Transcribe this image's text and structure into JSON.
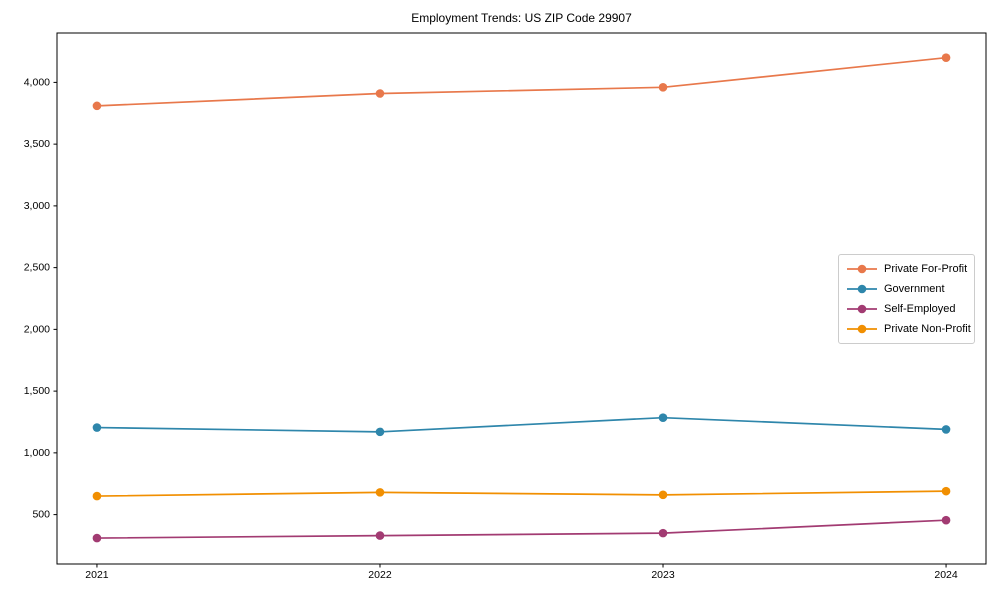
{
  "chart_data": {
    "type": "line",
    "title": "Employment Trends: US ZIP Code 29907",
    "x": [
      2021,
      2022,
      2023,
      2024
    ],
    "xtick_labels": [
      "2021",
      "2022",
      "2023",
      "2024"
    ],
    "series": [
      {
        "name": "Private For-Profit",
        "color": "#E8784B",
        "values": [
          3810,
          3910,
          3960,
          4200
        ]
      },
      {
        "name": "Government",
        "color": "#2E86AB",
        "values": [
          1205,
          1170,
          1285,
          1190
        ]
      },
      {
        "name": "Self-Employed",
        "color": "#A23B72",
        "values": [
          310,
          330,
          350,
          455
        ]
      },
      {
        "name": "Private Non-Profit",
        "color": "#F18F01",
        "values": [
          650,
          680,
          660,
          690
        ]
      }
    ],
    "yticks": [
      500,
      1000,
      1500,
      2000,
      2500,
      3000,
      3500,
      4000
    ],
    "ytick_labels": [
      "500",
      "1,000",
      "1,500",
      "2,000",
      "2,500",
      "3,000",
      "3,500",
      "4,000"
    ],
    "ylim": [
      100,
      4400
    ],
    "xlabel": "",
    "ylabel": "",
    "grid": false,
    "legend_position": "center-right",
    "axis_color": "#000000",
    "legend_border_color": "#cccccc",
    "background_color": "#ffffff"
  }
}
